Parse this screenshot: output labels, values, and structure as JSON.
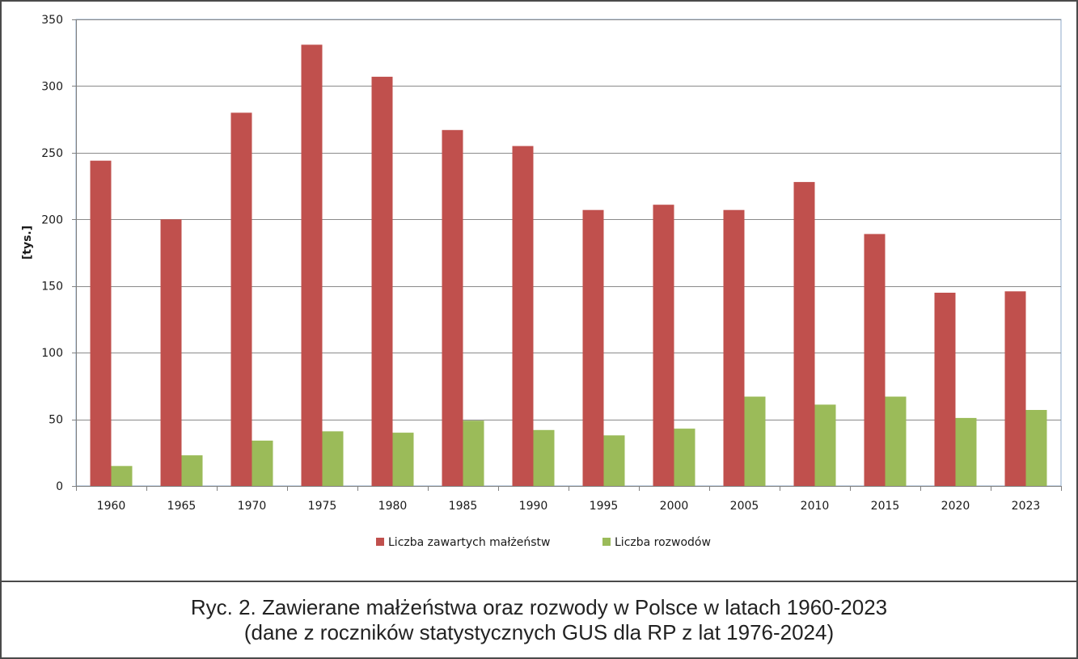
{
  "chart_data": {
    "type": "bar",
    "title": "",
    "xlabel": "",
    "ylabel": "[tys.]",
    "ylim": [
      0,
      350
    ],
    "yticks": [
      0,
      50,
      100,
      150,
      200,
      250,
      300,
      350
    ],
    "grid": true,
    "legend_position": "bottom",
    "categories": [
      "1960",
      "1965",
      "1970",
      "1975",
      "1980",
      "1985",
      "1990",
      "1995",
      "2000",
      "2005",
      "2010",
      "2015",
      "2020",
      "2023"
    ],
    "series": [
      {
        "name": "Liczba zawartych małżeństw",
        "color": "#c0504d",
        "values": [
          244,
          200,
          280,
          331,
          307,
          267,
          255,
          207,
          211,
          207,
          228,
          189,
          145,
          146
        ]
      },
      {
        "name": "Liczba rozwodów",
        "color": "#9bbb59",
        "values": [
          15,
          23,
          34,
          41,
          40,
          49,
          42,
          38,
          43,
          67,
          61,
          67,
          51,
          57
        ]
      }
    ]
  },
  "caption": {
    "line1": "Ryc. 2. Zawierane małżeństwa oraz rozwody w Polsce w latach 1960-2023",
    "line2": "(dane z roczników statystycznych GUS dla RP z lat 1976-2024)"
  }
}
